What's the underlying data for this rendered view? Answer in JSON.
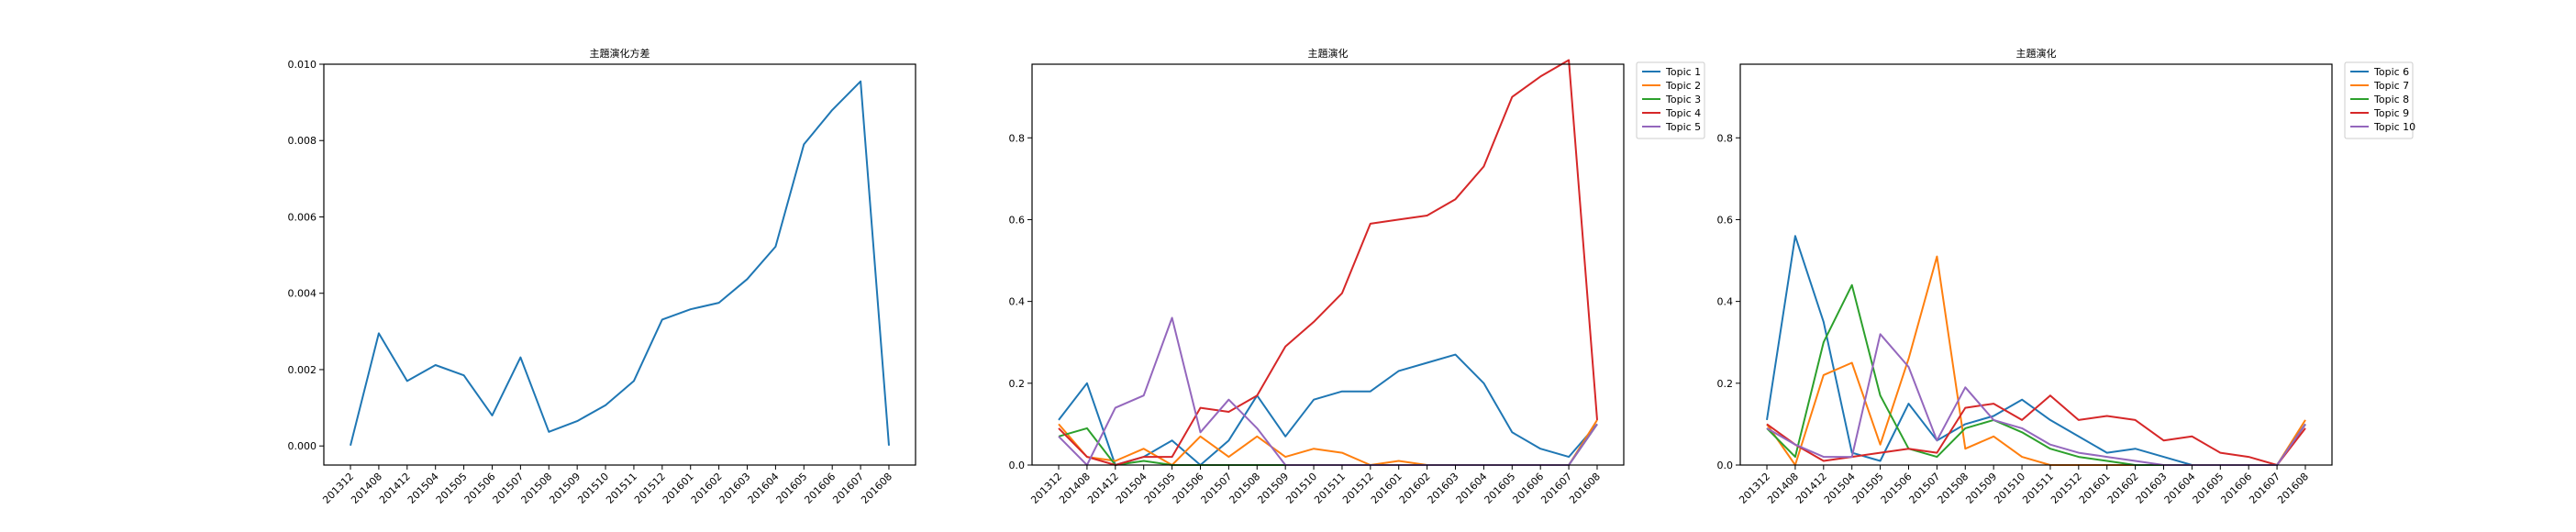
{
  "chart_data": [
    {
      "type": "line",
      "title": "主題演化方差",
      "xlabel": "",
      "ylabel": "",
      "categories": [
        "201312",
        "201408",
        "201412",
        "201504",
        "201505",
        "201506",
        "201507",
        "201508",
        "201509",
        "201510",
        "201511",
        "201512",
        "201601",
        "201602",
        "201603",
        "201604",
        "201605",
        "201606",
        "201607",
        "201608"
      ],
      "ylim": [
        -0.0005,
        0.01
      ],
      "yticks": [
        "0.000",
        "0.002",
        "0.004",
        "0.006",
        "0.008",
        "0.010"
      ],
      "ytick_values": [
        0,
        0.002,
        0.004,
        0.006,
        0.008,
        0.01
      ],
      "legend": "none",
      "series": [
        {
          "color": "#1f77b4",
          "values": [
            1e-05,
            0.00295,
            0.0017,
            0.00212,
            0.00185,
            0.0008,
            0.00232,
            0.00037,
            0.00065,
            0.00107,
            0.0017,
            0.00331,
            0.00358,
            0.00375,
            0.00437,
            0.00522,
            0.0079,
            0.0088,
            0.00955,
            1e-05
          ]
        }
      ]
    },
    {
      "type": "line",
      "title": "主題演化",
      "xlabel": "",
      "ylabel": "",
      "categories": [
        "201312",
        "201408",
        "201412",
        "201504",
        "201505",
        "201506",
        "201507",
        "201508",
        "201509",
        "201510",
        "201511",
        "201512",
        "201601",
        "201602",
        "201603",
        "201604",
        "201605",
        "201606",
        "201607",
        "201608"
      ],
      "ylim": [
        0,
        0.98
      ],
      "yticks": [
        "0.0",
        "0.2",
        "0.4",
        "0.6",
        "0.8"
      ],
      "ytick_values": [
        0,
        0.2,
        0.4,
        0.6,
        0.8
      ],
      "legend": "outside-top-right",
      "series": [
        {
          "name": "Topic 1",
          "color": "#1f77b4",
          "values": [
            0.11,
            0.2,
            0.0,
            0.02,
            0.06,
            0.0,
            0.06,
            0.17,
            0.07,
            0.16,
            0.18,
            0.18,
            0.23,
            0.25,
            0.27,
            0.2,
            0.08,
            0.04,
            0.02,
            0.1
          ]
        },
        {
          "name": "Topic 2",
          "color": "#ff7f0e",
          "values": [
            0.1,
            0.02,
            0.01,
            0.04,
            0.0,
            0.07,
            0.02,
            0.07,
            0.02,
            0.04,
            0.03,
            0.0,
            0.01,
            0.0,
            0.0,
            0.0,
            0.0,
            0.0,
            0.0,
            0.11
          ]
        },
        {
          "name": "Topic 3",
          "color": "#2ca02c",
          "values": [
            0.07,
            0.09,
            0.0,
            0.01,
            0.0,
            0.0,
            0.0,
            0.0,
            0.0,
            0.0,
            0.0,
            0.0,
            0.0,
            0.0,
            0.0,
            0.0,
            0.0,
            0.0,
            0.0,
            0.1
          ]
        },
        {
          "name": "Topic 4",
          "color": "#d62728",
          "values": [
            0.09,
            0.02,
            0.0,
            0.02,
            0.02,
            0.14,
            0.13,
            0.17,
            0.29,
            0.35,
            0.42,
            0.59,
            0.6,
            0.61,
            0.65,
            0.73,
            0.9,
            0.95,
            0.99,
            0.11
          ]
        },
        {
          "name": "Topic 5",
          "color": "#9467bd",
          "values": [
            0.07,
            0.0,
            0.14,
            0.17,
            0.36,
            0.08,
            0.16,
            0.09,
            0.0,
            0.0,
            0.0,
            0.0,
            0.0,
            0.0,
            0.0,
            0.0,
            0.0,
            0.0,
            0.0,
            0.1
          ]
        }
      ]
    },
    {
      "type": "line",
      "title": "主題演化",
      "xlabel": "",
      "ylabel": "",
      "categories": [
        "201312",
        "201408",
        "201412",
        "201504",
        "201505",
        "201506",
        "201507",
        "201508",
        "201509",
        "201510",
        "201511",
        "201512",
        "201601",
        "201602",
        "201603",
        "201604",
        "201605",
        "201606",
        "201607",
        "201608"
      ],
      "ylim": [
        0,
        0.98
      ],
      "yticks": [
        "0.0",
        "0.2",
        "0.4",
        "0.6",
        "0.8"
      ],
      "ytick_values": [
        0,
        0.2,
        0.4,
        0.6,
        0.8
      ],
      "legend": "outside-top-right",
      "series": [
        {
          "name": "Topic 6",
          "color": "#1f77b4",
          "values": [
            0.11,
            0.56,
            0.35,
            0.03,
            0.01,
            0.15,
            0.06,
            0.1,
            0.12,
            0.16,
            0.11,
            0.07,
            0.03,
            0.04,
            0.02,
            0.0,
            0.0,
            0.0,
            0.0,
            0.1
          ]
        },
        {
          "name": "Topic 7",
          "color": "#ff7f0e",
          "values": [
            0.1,
            0.0,
            0.22,
            0.25,
            0.05,
            0.26,
            0.51,
            0.04,
            0.07,
            0.02,
            0.0,
            0.0,
            0.0,
            0.0,
            0.0,
            0.0,
            0.0,
            0.0,
            0.0,
            0.11
          ]
        },
        {
          "name": "Topic 8",
          "color": "#2ca02c",
          "values": [
            0.09,
            0.02,
            0.3,
            0.44,
            0.17,
            0.04,
            0.02,
            0.09,
            0.11,
            0.08,
            0.04,
            0.02,
            0.01,
            0.0,
            0.0,
            0.0,
            0.0,
            0.0,
            0.0,
            0.1
          ]
        },
        {
          "name": "Topic 9",
          "color": "#d62728",
          "values": [
            0.1,
            0.05,
            0.01,
            0.02,
            0.03,
            0.04,
            0.03,
            0.14,
            0.15,
            0.11,
            0.17,
            0.11,
            0.12,
            0.11,
            0.06,
            0.07,
            0.03,
            0.02,
            0.0,
            0.09
          ]
        },
        {
          "name": "Topic 10",
          "color": "#9467bd",
          "values": [
            0.09,
            0.05,
            0.02,
            0.02,
            0.32,
            0.24,
            0.06,
            0.19,
            0.11,
            0.09,
            0.05,
            0.03,
            0.02,
            0.01,
            0.0,
            0.0,
            0.0,
            0.0,
            0.0,
            0.1
          ]
        }
      ]
    }
  ]
}
